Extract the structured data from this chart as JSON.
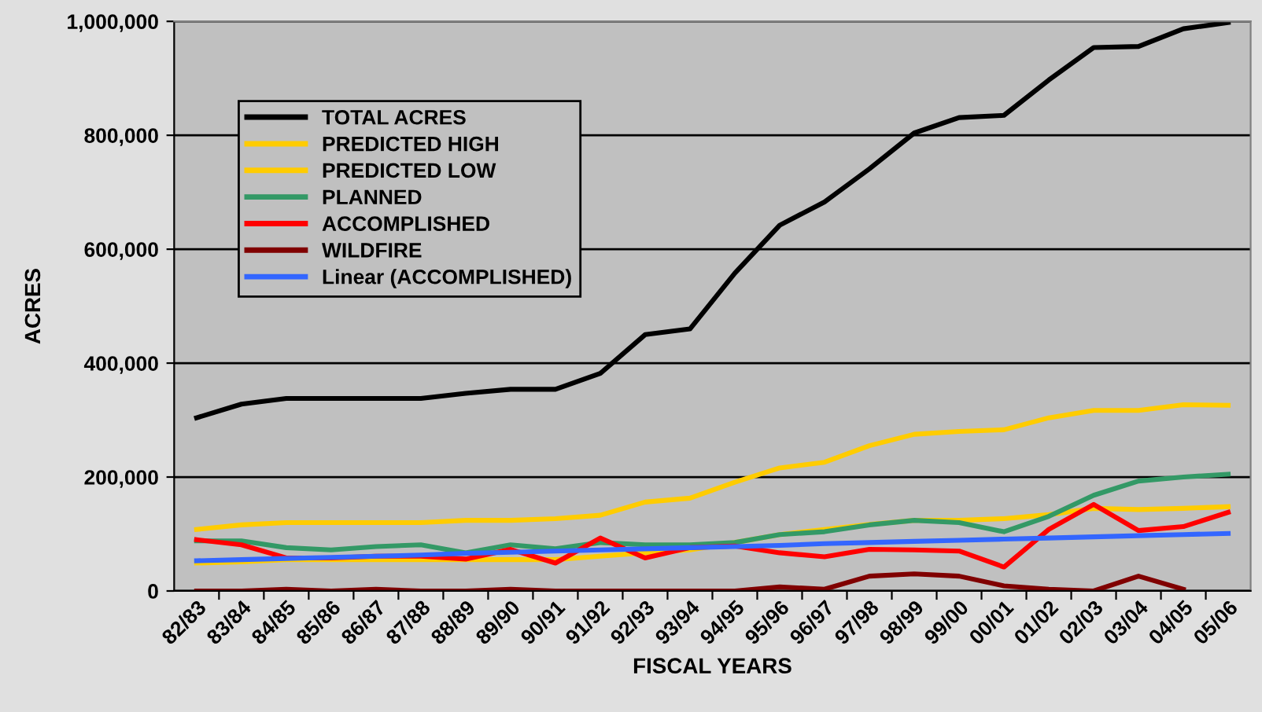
{
  "chart_data": {
    "type": "line",
    "xlabel": "FISCAL YEARS",
    "ylabel": "ACRES",
    "categories": [
      "82/83",
      "83/84",
      "84/85",
      "85/86",
      "86/87",
      "87/88",
      "88/89",
      "89/90",
      "90/91",
      "91/92",
      "92/93",
      "93/94",
      "94/95",
      "95/96",
      "96/97",
      "97/98",
      "98/99",
      "99/00",
      "00/01",
      "01/02",
      "02/03",
      "03/04",
      "04/05",
      "05/06"
    ],
    "series": [
      {
        "name": "TOTAL ACRES",
        "color": "#000000",
        "values": [
          304000,
          328000,
          338000,
          338000,
          338000,
          338000,
          347000,
          354000,
          354000,
          382000,
          450000,
          460000,
          558000,
          642000,
          683000,
          741000,
          804000,
          831000,
          835000,
          897000,
          954000,
          956000,
          987000,
          998000
        ]
      },
      {
        "name": "PREDICTED HIGH",
        "color": "#ffcc00",
        "values": [
          108000,
          116000,
          120000,
          120000,
          120000,
          120000,
          124000,
          124000,
          127000,
          133000,
          156000,
          163000,
          191000,
          216000,
          226000,
          255000,
          275000,
          280000,
          283000,
          304000,
          317000,
          317000,
          327000,
          326000
        ]
      },
      {
        "name": "PREDICTED LOW",
        "color": "#ffcc00",
        "values": [
          49000,
          51000,
          55000,
          55000,
          55000,
          55000,
          55000,
          55000,
          55000,
          61000,
          67000,
          72000,
          85000,
          99000,
          108000,
          117000,
          124000,
          124000,
          127000,
          134000,
          145000,
          143000,
          145000,
          148000
        ]
      },
      {
        "name": "PLANNED",
        "color": "#339966",
        "values": [
          88000,
          88000,
          76000,
          72000,
          78000,
          81000,
          67000,
          81000,
          74000,
          85000,
          81000,
          81000,
          85000,
          99000,
          104000,
          116000,
          124000,
          120000,
          104000,
          131000,
          168000,
          193000,
          200000,
          205000
        ]
      },
      {
        "name": "ACCOMPLISHED",
        "color": "#ff0000",
        "values": [
          90000,
          81000,
          58000,
          58000,
          61000,
          61000,
          56000,
          73000,
          49000,
          93000,
          58000,
          76000,
          79000,
          67000,
          60000,
          73000,
          72000,
          70000,
          42000,
          108000,
          152000,
          106000,
          113000,
          138000
        ]
      },
      {
        "name": "WILDFIRE",
        "color": "#800000",
        "values": [
          0,
          0,
          3000,
          0,
          3000,
          0,
          0,
          3000,
          0,
          0,
          0,
          0,
          0,
          7000,
          3000,
          26000,
          30000,
          26000,
          9000,
          3000,
          0,
          26000,
          3000,
          null
        ]
      },
      {
        "name": "Linear (ACCOMPLISHED)",
        "color": "#3366ff",
        "values": [
          53000,
          55000,
          57000,
          59000,
          61000,
          63000,
          66000,
          68000,
          70000,
          72000,
          74000,
          76000,
          78000,
          80000,
          83000,
          85000,
          87000,
          89000,
          91000,
          93000,
          95000,
          97000,
          99000,
          101000
        ]
      }
    ],
    "ylim": [
      0,
      1000000
    ],
    "yticks": [
      {
        "value": 0,
        "label": "0"
      },
      {
        "value": 200000,
        "label": "200,000"
      },
      {
        "value": 400000,
        "label": "400,000"
      },
      {
        "value": 600000,
        "label": "600,000"
      },
      {
        "value": 800000,
        "label": "800,000"
      },
      {
        "value": 1000000,
        "label": "1,000,000"
      }
    ],
    "grid": "y",
    "legend": "top left",
    "marker": "none",
    "line_style": "solid"
  }
}
